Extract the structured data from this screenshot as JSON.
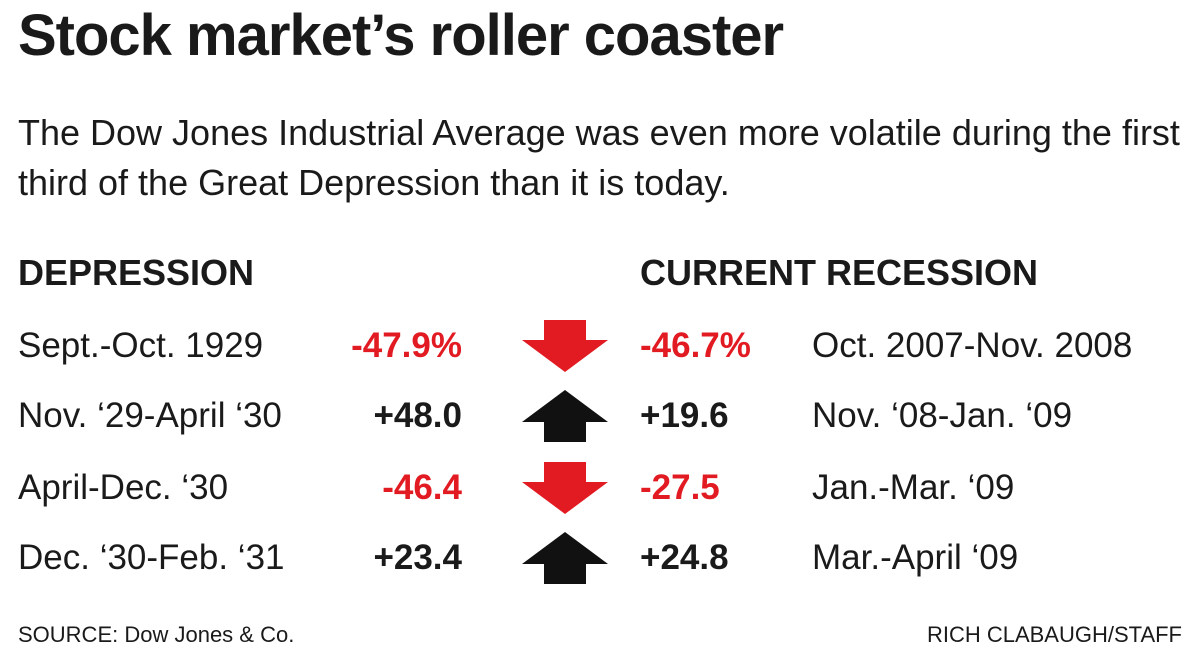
{
  "title": "Stock market’s roller coaster",
  "subtitle": "The Dow Jones Industrial Average was even more volatile during the first third of the Great Depression than it is today.",
  "footer": {
    "source": "SOURCE: Dow Jones & Co.",
    "credit": "RICH CLABAUGH/STAFF"
  },
  "colors": {
    "negative": "#e21b22",
    "positive": "#1a1a1a"
  },
  "chart_data": {
    "type": "table",
    "columns": [
      "DEPRESSION",
      "CURRENT RECESSION"
    ],
    "rows": [
      {
        "depression_period": "Sept.-Oct. 1929",
        "depression_change": "-47.9%",
        "direction": "down",
        "current_change": "-46.7%",
        "current_period": "Oct. 2007-Nov. 2008"
      },
      {
        "depression_period": "Nov. ‘29-April ‘30",
        "depression_change": "+48.0",
        "direction": "up",
        "current_change": "+19.6",
        "current_period": "Nov. ‘08-Jan. ‘09"
      },
      {
        "depression_period": "April-Dec. ‘30",
        "depression_change": "-46.4",
        "direction": "down",
        "current_change": "-27.5",
        "current_period": "Jan.-Mar. ‘09"
      },
      {
        "depression_period": "Dec. ‘30-Feb. ‘31",
        "depression_change": "+23.4",
        "direction": "up",
        "current_change": "+24.8",
        "current_period": "Mar.-April ‘09"
      }
    ],
    "values_depression": [
      -47.9,
      48.0,
      -46.4,
      23.4
    ],
    "values_current": [
      -46.7,
      19.6,
      -27.5,
      24.8
    ]
  }
}
